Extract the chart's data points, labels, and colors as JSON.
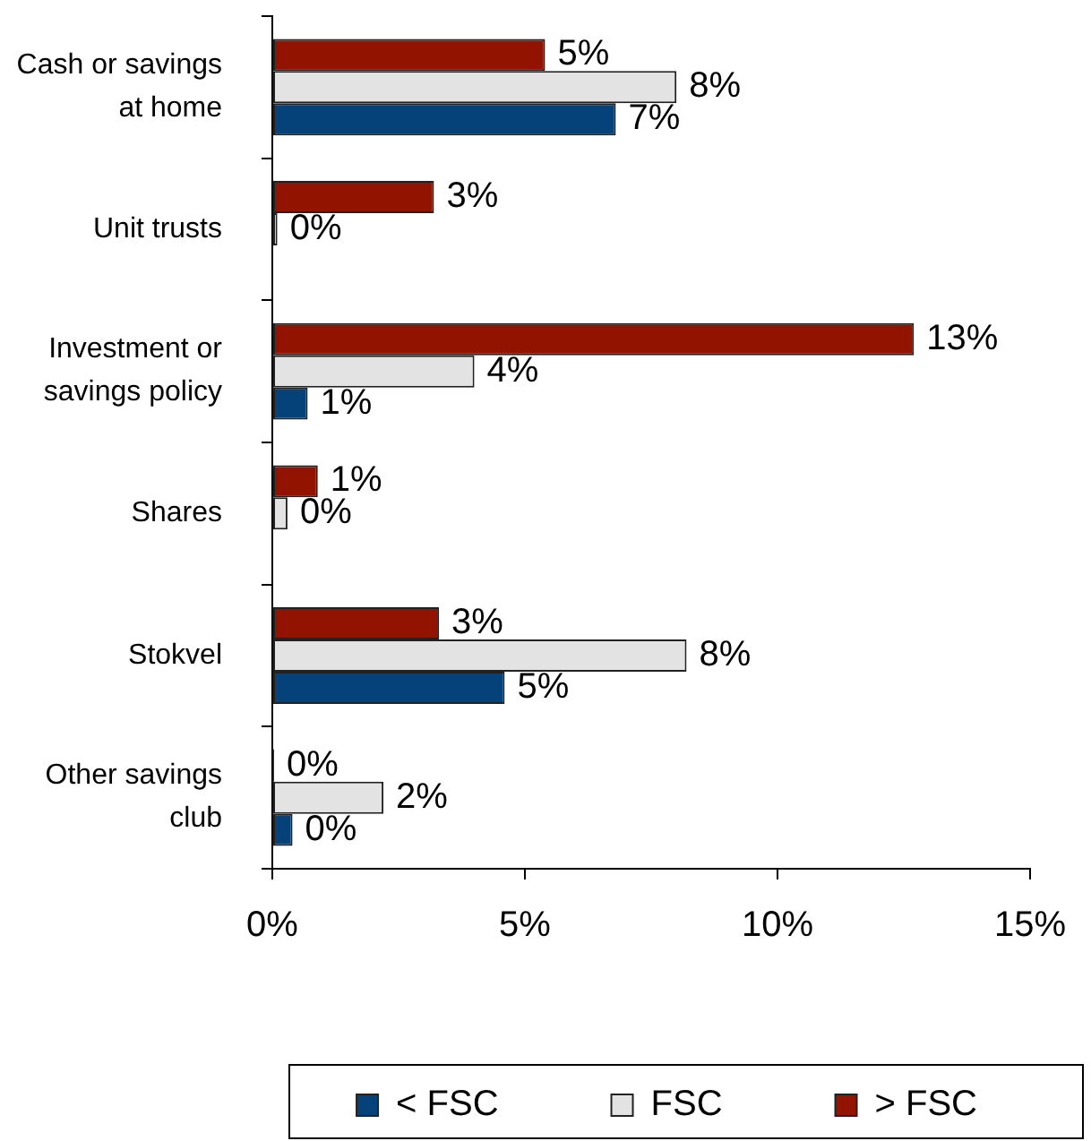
{
  "chart_data": {
    "type": "bar",
    "orientation": "horizontal",
    "categories": [
      "Cash or savings at home",
      "Unit trusts",
      "Investment or savings policy",
      "Shares",
      "Stokvel",
      "Other savings club"
    ],
    "series": [
      {
        "name": "< FSC",
        "color": "#06427a",
        "values": [
          6.8,
          null,
          0.7,
          null,
          4.6,
          0.4
        ],
        "value_labels": [
          "7%",
          null,
          "1%",
          null,
          "5%",
          "0%"
        ]
      },
      {
        "name": "FSC",
        "color": "#e3e3e3",
        "values": [
          8.0,
          0.1,
          4.0,
          0.3,
          8.2,
          2.2
        ],
        "value_labels": [
          "8%",
          "0%",
          "4%",
          "0%",
          "8%",
          "2%"
        ]
      },
      {
        "name": "> FSC",
        "color": "#911300",
        "values": [
          5.4,
          3.2,
          12.7,
          0.9,
          3.3,
          0
        ],
        "value_labels": [
          "5%",
          "3%",
          "13%",
          "1%",
          "3%",
          "0%"
        ]
      }
    ],
    "xlim": [
      0,
      15
    ],
    "xticks": [
      {
        "value": 0,
        "label": "0%"
      },
      {
        "value": 5,
        "label": "5%"
      },
      {
        "value": 10,
        "label": "10%"
      },
      {
        "value": 15,
        "label": "15%"
      }
    ],
    "grid": false,
    "legend": "bottom"
  }
}
